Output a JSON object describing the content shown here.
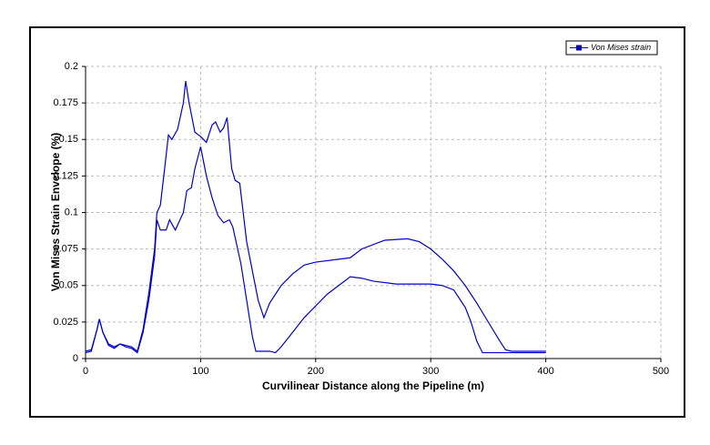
{
  "chart_data": {
    "type": "line",
    "x_label": "Curvilinear Distance along the Pipeline (m)",
    "y_label": "Von Mises Strain Envelope (%)",
    "xlim": [
      0,
      500
    ],
    "xticks": [
      0,
      100,
      200,
      300,
      400,
      500
    ],
    "ylim": [
      0,
      0.2
    ],
    "yticks": [
      0,
      0.025,
      0.05,
      0.075,
      0.1,
      0.125,
      0.15,
      0.175,
      0.2
    ],
    "grid": true,
    "legend": "upper right",
    "series": [
      {
        "name": "Von Mises strain",
        "color": "#0000cc",
        "x": [
          0,
          5,
          10,
          12,
          15,
          20,
          25,
          30,
          35,
          40,
          45,
          50,
          55,
          60,
          62,
          65,
          68,
          72,
          75,
          80,
          85,
          87,
          90,
          95,
          100,
          105,
          110,
          113,
          117,
          120,
          123,
          127,
          130,
          134,
          140,
          145,
          150,
          155,
          160,
          170,
          180,
          190,
          200,
          220,
          230,
          240,
          260,
          280,
          290,
          300,
          310,
          320,
          330,
          340,
          350,
          360,
          365,
          370,
          400
        ],
        "values": [
          0.005,
          0.006,
          0.02,
          0.027,
          0.018,
          0.01,
          0.008,
          0.01,
          0.009,
          0.008,
          0.005,
          0.02,
          0.045,
          0.075,
          0.1,
          0.105,
          0.125,
          0.153,
          0.15,
          0.157,
          0.175,
          0.19,
          0.175,
          0.155,
          0.152,
          0.148,
          0.16,
          0.162,
          0.155,
          0.158,
          0.165,
          0.13,
          0.122,
          0.12,
          0.08,
          0.06,
          0.04,
          0.028,
          0.038,
          0.05,
          0.058,
          0.064,
          0.066,
          0.068,
          0.069,
          0.075,
          0.081,
          0.082,
          0.08,
          0.075,
          0.068,
          0.06,
          0.05,
          0.038,
          0.025,
          0.012,
          0.006,
          0.005,
          0.005
        ]
      },
      {
        "color": "#0000cc",
        "x": [
          0,
          5,
          10,
          12,
          15,
          20,
          25,
          30,
          35,
          40,
          45,
          50,
          55,
          60,
          62,
          65,
          70,
          73,
          78,
          85,
          88,
          92,
          95,
          100,
          105,
          110,
          115,
          120,
          125,
          128,
          135,
          140,
          145,
          148,
          160,
          165,
          170,
          180,
          190,
          200,
          210,
          220,
          230,
          240,
          250,
          270,
          290,
          300,
          310,
          320,
          330,
          335,
          340,
          345,
          400
        ],
        "values": [
          0.004,
          0.005,
          0.02,
          0.027,
          0.018,
          0.009,
          0.007,
          0.01,
          0.008,
          0.007,
          0.004,
          0.018,
          0.04,
          0.07,
          0.095,
          0.088,
          0.088,
          0.095,
          0.088,
          0.1,
          0.115,
          0.117,
          0.13,
          0.145,
          0.125,
          0.11,
          0.098,
          0.093,
          0.095,
          0.09,
          0.065,
          0.04,
          0.015,
          0.005,
          0.005,
          0.004,
          0.008,
          0.018,
          0.028,
          0.036,
          0.044,
          0.05,
          0.056,
          0.055,
          0.053,
          0.051,
          0.051,
          0.051,
          0.05,
          0.047,
          0.035,
          0.025,
          0.012,
          0.004,
          0.004
        ]
      }
    ]
  }
}
